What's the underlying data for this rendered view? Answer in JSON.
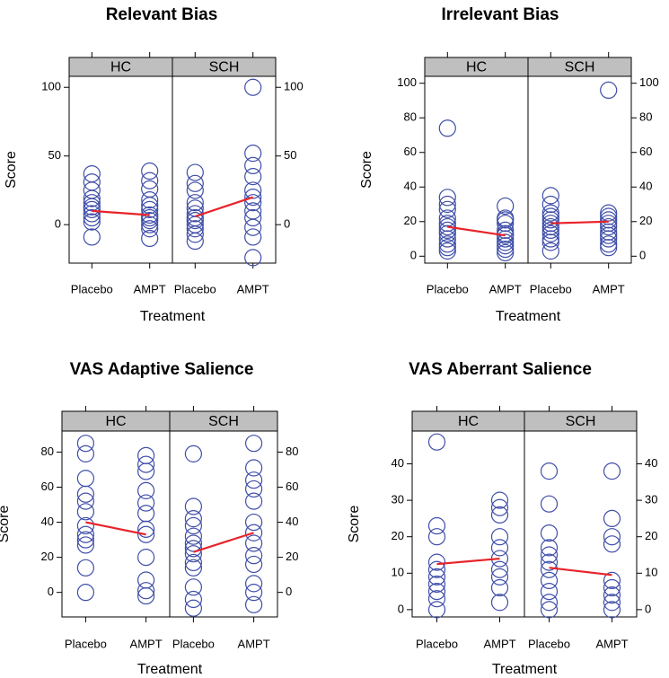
{
  "chart_data": [
    {
      "type": "scatter",
      "title": "Relevant Bias",
      "xlabel": "Treatment",
      "ylabel": "Score",
      "panels": [
        "HC",
        "SCH"
      ],
      "categories": [
        "Placebo",
        "AMPT"
      ],
      "ylim": [
        -28,
        108
      ],
      "yticks": [
        0,
        50,
        100
      ],
      "yticks_left": [
        "0",
        "50",
        "100"
      ],
      "yticks_right": [
        "0",
        "50",
        "100"
      ],
      "series": [
        {
          "panel": "HC",
          "treatment": "Placebo",
          "values": [
            -9,
            2,
            5,
            8,
            11,
            13,
            16,
            19,
            25,
            31,
            37
          ]
        },
        {
          "panel": "HC",
          "treatment": "AMPT",
          "values": [
            -10,
            -3,
            0,
            3,
            5,
            7,
            11,
            14,
            18,
            26,
            32,
            39
          ]
        },
        {
          "panel": "SCH",
          "treatment": "Placebo",
          "values": [
            -12,
            -7,
            -3,
            0,
            3,
            5,
            8,
            12,
            16,
            25,
            30,
            38
          ]
        },
        {
          "panel": "SCH",
          "treatment": "AMPT",
          "values": [
            -24,
            -9,
            -2,
            5,
            10,
            16,
            20,
            25,
            35,
            43,
            52,
            100
          ]
        }
      ],
      "means": {
        "HC": [
          10,
          7
        ],
        "SCH": [
          6,
          20
        ]
      }
    },
    {
      "type": "scatter",
      "title": "Irrelevant Bias",
      "xlabel": "Treatment",
      "ylabel": "Score",
      "panels": [
        "HC",
        "SCH"
      ],
      "categories": [
        "Placebo",
        "AMPT"
      ],
      "ylim": [
        -4,
        104
      ],
      "yticks": [
        0,
        20,
        40,
        60,
        80,
        100
      ],
      "yticks_left": [
        "0",
        "20",
        "40",
        "60",
        "80",
        "100"
      ],
      "yticks_right": [
        "0",
        "20",
        "40",
        "60",
        "80",
        "100"
      ],
      "series": [
        {
          "panel": "HC",
          "treatment": "Placebo",
          "values": [
            3,
            5,
            7,
            10,
            13,
            15,
            17,
            19,
            22,
            27,
            30,
            34,
            74
          ]
        },
        {
          "panel": "HC",
          "treatment": "AMPT",
          "values": [
            2,
            4,
            6,
            8,
            10,
            12,
            13,
            15,
            19,
            21,
            22,
            29
          ]
        },
        {
          "panel": "SCH",
          "treatment": "Placebo",
          "values": [
            3,
            8,
            10,
            13,
            15,
            17,
            19,
            21,
            23,
            25,
            30,
            35
          ]
        },
        {
          "panel": "SCH",
          "treatment": "AMPT",
          "values": [
            5,
            7,
            10,
            12,
            14,
            17,
            19,
            21,
            23,
            25,
            96
          ]
        }
      ],
      "means": {
        "HC": [
          17,
          12
        ],
        "SCH": [
          19,
          20
        ]
      }
    },
    {
      "type": "scatter",
      "title": "VAS Adaptive Salience",
      "xlabel": "Treatment",
      "ylabel": "Score",
      "panels": [
        "HC",
        "SCH"
      ],
      "categories": [
        "Placebo",
        "AMPT"
      ],
      "ylim": [
        -14,
        92
      ],
      "yticks": [
        0,
        20,
        40,
        60,
        80
      ],
      "yticks_left": [
        "0",
        "20",
        "40",
        "60",
        "80"
      ],
      "yticks_right": [
        "0",
        "20",
        "40",
        "60",
        "80"
      ],
      "series": [
        {
          "panel": "HC",
          "treatment": "Placebo",
          "values": [
            0,
            14,
            27,
            30,
            33,
            38,
            46,
            52,
            56,
            65,
            79,
            85
          ]
        },
        {
          "panel": "HC",
          "treatment": "AMPT",
          "values": [
            -2,
            1,
            7,
            20,
            33,
            36,
            45,
            51,
            58,
            69,
            73,
            78
          ]
        },
        {
          "panel": "SCH",
          "treatment": "Placebo",
          "values": [
            -9,
            -4,
            3,
            14,
            17,
            22,
            25,
            28,
            32,
            38,
            42,
            49,
            79
          ]
        },
        {
          "panel": "SCH",
          "treatment": "AMPT",
          "values": [
            -7,
            0,
            5,
            16,
            21,
            28,
            34,
            40,
            52,
            59,
            64,
            71,
            85
          ]
        }
      ],
      "means": {
        "HC": [
          40,
          33
        ],
        "SCH": [
          23,
          34
        ]
      }
    },
    {
      "type": "scatter",
      "title": "VAS Aberrant Salience",
      "xlabel": "Treatment",
      "ylabel": "Score",
      "panels": [
        "HC",
        "SCH"
      ],
      "categories": [
        "Placebo",
        "AMPT"
      ],
      "ylim": [
        -2,
        49
      ],
      "yticks": [
        0,
        10,
        20,
        30,
        40
      ],
      "yticks_left": [
        "0",
        "10",
        "20",
        "30",
        "40"
      ],
      "yticks_right": [
        "0",
        "10",
        "20",
        "30",
        "40"
      ],
      "series": [
        {
          "panel": "HC",
          "treatment": "Placebo",
          "values": [
            0,
            3,
            5,
            7,
            9,
            11,
            13,
            20,
            23,
            46
          ]
        },
        {
          "panel": "HC",
          "treatment": "AMPT",
          "values": [
            2,
            6,
            9,
            11,
            14,
            17,
            20,
            26,
            28,
            30
          ]
        },
        {
          "panel": "SCH",
          "treatment": "Placebo",
          "values": [
            0,
            2,
            5,
            8,
            11,
            13,
            15,
            17,
            21,
            29,
            38
          ]
        },
        {
          "panel": "SCH",
          "treatment": "AMPT",
          "values": [
            0,
            2,
            4,
            6,
            8,
            18,
            20,
            25,
            38
          ]
        }
      ],
      "means": {
        "HC": [
          12.5,
          14
        ],
        "SCH": [
          11.5,
          9.5
        ]
      }
    }
  ]
}
